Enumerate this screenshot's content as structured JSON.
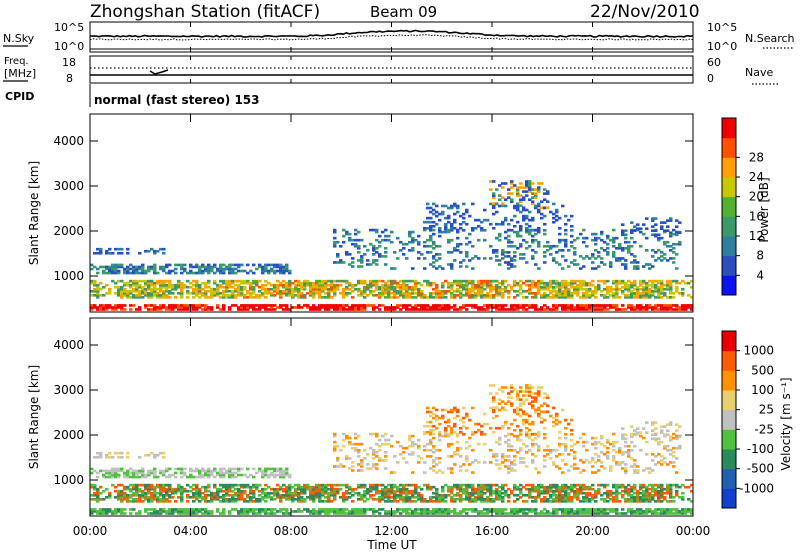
{
  "header": {
    "station": "Zhongshan Station (fitACF)",
    "beam": "Beam 09",
    "date": "22/Nov/2010"
  },
  "top_panel_1": {
    "left_label": "N.Sky",
    "right_label": "N.Search",
    "left_ticks": [
      "10^5",
      "10^0"
    ],
    "right_ticks": [
      "10^5",
      "10^0"
    ]
  },
  "top_panel_2": {
    "left_label_1": "Freq.",
    "left_label_2": "[MHz]",
    "right_label": "Nave",
    "left_ticks": [
      "18",
      "8"
    ],
    "right_ticks": [
      "60",
      "0"
    ]
  },
  "cpid": {
    "label": "CPID",
    "text": "normal (fast stereo) 153"
  },
  "colors": {
    "power": [
      "#0a14f0",
      "#2a4fc0",
      "#2f7fa0",
      "#3a9a6a",
      "#50b030",
      "#c8c800",
      "#ffa000",
      "#ff5000",
      "#f00000"
    ],
    "velocity": [
      "#e80000",
      "#ff5a00",
      "#ff9000",
      "#e8d070",
      "#c0c0c0",
      "#50c040",
      "#2a8a5a",
      "#2060b0",
      "#1040d0"
    ]
  },
  "chart_data": [
    {
      "type": "heatmap",
      "name": "power",
      "ylabel": "Slant Range [km]",
      "yticks": [
        1000,
        2000,
        3000,
        4000
      ],
      "ylim": [
        200,
        4600
      ],
      "colorbar_label": "Power [dB]",
      "colorbar_ticks": [
        4,
        8,
        12,
        16,
        20,
        24,
        28
      ],
      "colorbar_range": [
        0,
        32
      ]
    },
    {
      "type": "heatmap",
      "name": "velocity",
      "ylabel": "Slant Range [km]",
      "yticks": [
        1000,
        2000,
        3000,
        4000
      ],
      "ylim": [
        200,
        4600
      ],
      "colorbar_label": "Velocity [m s⁻¹]",
      "colorbar_ticks": [
        "-1000",
        "-500",
        "-100",
        "-25",
        "25",
        "100",
        "500",
        "1000"
      ]
    }
  ],
  "xaxis": {
    "ticks": [
      "00:00",
      "04:00",
      "08:00",
      "12:00",
      "16:00",
      "20:00",
      "00:00"
    ],
    "label": "Time UT"
  }
}
